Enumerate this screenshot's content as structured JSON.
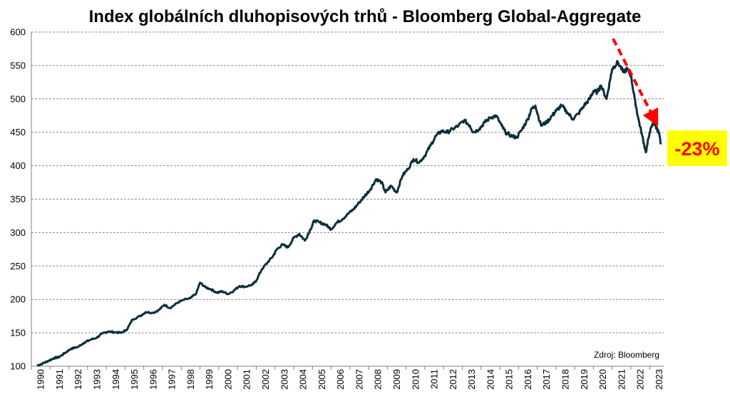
{
  "chart_data": {
    "type": "line",
    "title": "Index globálních dluhopisových trhů - Bloomberg Global-Aggregate",
    "xlabel": "",
    "ylabel": "",
    "xlim": [
      1990,
      2023.75
    ],
    "ylim": [
      100,
      600
    ],
    "y_ticks": [
      "100",
      "150",
      "200",
      "250",
      "300",
      "350",
      "400",
      "450",
      "500",
      "550",
      "600"
    ],
    "x_ticks": [
      "1990",
      "1991",
      "1992",
      "1993",
      "1994",
      "1995",
      "1996",
      "1997",
      "1998",
      "1999",
      "2000",
      "2001",
      "2002",
      "2003",
      "2004",
      "2005",
      "2006",
      "2007",
      "2008",
      "2009",
      "2010",
      "2011",
      "2012",
      "2013",
      "2014",
      "2015",
      "2016",
      "2017",
      "2018",
      "2019",
      "2020",
      "2021",
      "2022",
      "2023"
    ],
    "grid": true,
    "series_color": "#0d2f3a",
    "series": [
      {
        "x": [
          1990.3,
          1990.6,
          1990.9,
          1991.2,
          1991.5,
          1991.8,
          1992.1,
          1992.5,
          1992.8,
          1993.1,
          1993.5,
          1993.8,
          1994.1,
          1994.4,
          1994.8,
          1995.1,
          1995.4,
          1995.8,
          1996.1,
          1996.5,
          1996.8,
          1997.1,
          1997.4,
          1997.8,
          1998.1,
          1998.5,
          1998.8,
          1999.0,
          1999.3,
          1999.6,
          1999.9,
          2000.2,
          2000.5,
          2000.8,
          2001.1,
          2001.4,
          2001.8,
          2002.0,
          2002.3,
          2002.6,
          2002.9,
          2003.1,
          2003.4,
          2003.7,
          2004.0,
          2004.3,
          2004.6,
          2004.9,
          2005.1,
          2005.4,
          2005.7,
          2006.0,
          2006.3,
          2006.6,
          2006.9,
          2007.2,
          2007.5,
          2007.8,
          2008.1,
          2008.4,
          2008.7,
          2008.9,
          2009.2,
          2009.5,
          2009.8,
          2010.1,
          2010.4,
          2010.7,
          2011.0,
          2011.3,
          2011.6,
          2011.9,
          2012.2,
          2012.5,
          2012.8,
          2013.1,
          2013.4,
          2013.6,
          2013.9,
          2014.2,
          2014.5,
          2014.8,
          2015.1,
          2015.3,
          2015.6,
          2015.9,
          2016.2,
          2016.5,
          2016.7,
          2016.9,
          2017.2,
          2017.5,
          2017.8,
          2018.0,
          2018.3,
          2018.6,
          2018.9,
          2019.2,
          2019.5,
          2019.8,
          2020.0,
          2020.2,
          2020.4,
          2020.7,
          2020.9,
          2021.0,
          2021.3,
          2021.6,
          2021.8,
          2022.0,
          2022.2,
          2022.4,
          2022.6,
          2022.8,
          2023.0,
          2023.2,
          2023.4,
          2023.5,
          2023.6
        ],
        "values": [
          101,
          104,
          108,
          112,
          114,
          120,
          126,
          129,
          135,
          139,
          143,
          149,
          152,
          151,
          150,
          155,
          170,
          175,
          181,
          180,
          184,
          192,
          187,
          195,
          199,
          202,
          209,
          225,
          218,
          215,
          210,
          212,
          208,
          213,
          220,
          219,
          222,
          228,
          245,
          255,
          265,
          275,
          282,
          278,
          292,
          298,
          288,
          305,
          318,
          315,
          312,
          305,
          315,
          320,
          328,
          335,
          345,
          355,
          365,
          380,
          375,
          360,
          370,
          360,
          385,
          395,
          410,
          405,
          415,
          430,
          445,
          452,
          450,
          455,
          460,
          468,
          460,
          450,
          455,
          465,
          472,
          475,
          460,
          450,
          445,
          442,
          455,
          470,
          485,
          490,
          460,
          465,
          475,
          482,
          490,
          480,
          470,
          478,
          490,
          500,
          512,
          510,
          520,
          500,
          530,
          545,
          555,
          540,
          545,
          535,
          500,
          470,
          445,
          420,
          450,
          465,
          455,
          448,
          432
        ]
      }
    ],
    "annotations": {
      "callout": "-23%",
      "source": "Zdroj: Bloomberg"
    }
  },
  "colors": {
    "line": "#0d2f3a",
    "arrow": "#ff0000",
    "callout_bg": "#ffff00",
    "callout_text": "#ff0000",
    "grid": "#8c8c8c"
  }
}
